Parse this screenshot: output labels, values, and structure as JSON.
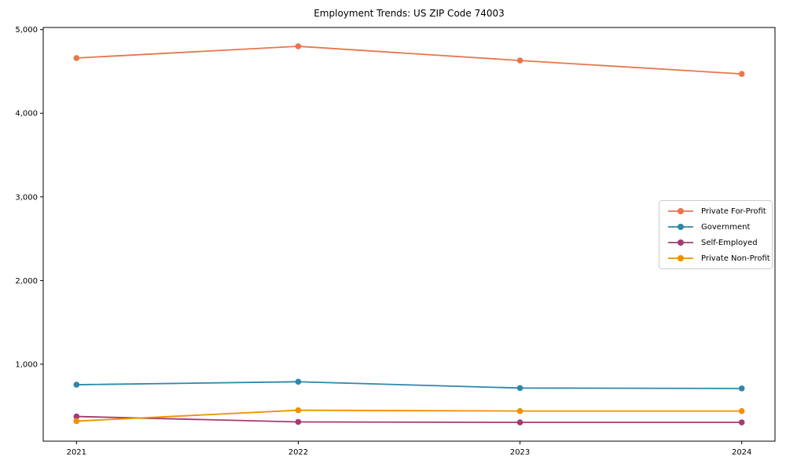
{
  "chart_data": {
    "type": "line",
    "title": "Employment Trends: US ZIP Code 74003",
    "xlabel": "",
    "ylabel": "",
    "x": [
      2021,
      2022,
      2023,
      2024
    ],
    "x_tick_labels": [
      "2021",
      "2022",
      "2023",
      "2024"
    ],
    "y_ticks": [
      1000,
      2000,
      3000,
      4000,
      5000
    ],
    "y_tick_labels": [
      "1,000",
      "2,000",
      "3,000",
      "4,000",
      "5,000"
    ],
    "xlim": [
      2020.85,
      2024.15
    ],
    "ylim": [
      80,
      5025
    ],
    "grid": false,
    "legend_position": "center right",
    "marker": "circle",
    "axis_color": "#000000",
    "background_color": "#ffffff",
    "series": [
      {
        "name": "Private For-Profit",
        "color": "#E8764B",
        "values": [
          4660,
          4800,
          4630,
          4470
        ]
      },
      {
        "name": "Government",
        "color": "#2E86AB",
        "values": [
          755,
          790,
          715,
          710
        ]
      },
      {
        "name": "Self-Employed",
        "color": "#A23B72",
        "values": [
          375,
          310,
          305,
          305
        ]
      },
      {
        "name": "Private Non-Profit",
        "color": "#F18F01",
        "values": [
          320,
          450,
          440,
          440
        ]
      }
    ]
  }
}
